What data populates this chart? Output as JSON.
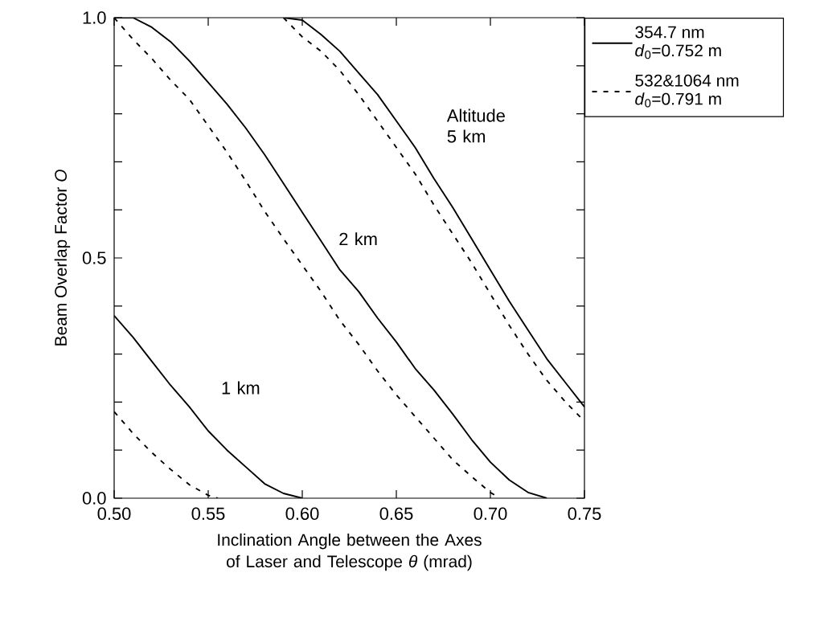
{
  "chart_data": {
    "type": "line",
    "xlabel": "Inclination Angle between the Axes of Laser and Telescope *θ* (mrad)",
    "ylabel": "Beam Overlap Factor *O*",
    "xlim": [
      0.5,
      0.75
    ],
    "ylim": [
      0.0,
      1.0
    ],
    "xticks": [
      {
        "value": 0.5,
        "label": "0.50"
      },
      {
        "value": 0.55,
        "label": "0.55"
      },
      {
        "value": 0.6,
        "label": "0.60"
      },
      {
        "value": 0.65,
        "label": "0.65"
      },
      {
        "value": 0.7,
        "label": "0.70"
      },
      {
        "value": 0.75,
        "label": "0.75"
      }
    ],
    "yticks": [
      {
        "value": 0,
        "label": "0.0"
      },
      {
        "value": 0.1,
        "label": null
      },
      {
        "value": 0.2,
        "label": null
      },
      {
        "value": 0.3,
        "label": null
      },
      {
        "value": 0.4,
        "label": null
      },
      {
        "value": 0.5,
        "label": "0.5"
      },
      {
        "value": 0.6,
        "label": null
      },
      {
        "value": 0.7,
        "label": null
      },
      {
        "value": 0.8,
        "label": null
      },
      {
        "value": 0.9,
        "label": null
      },
      {
        "value": 1.0,
        "label": "1.0"
      }
    ],
    "legend": "top right",
    "series": [
      {
        "name": "354.7 nm *d*$_{0}$=0.752 m",
        "color": "#000000",
        "line_style": "solid",
        "x": [
          0.5,
          0.51,
          0.52,
          0.53,
          0.54,
          0.55,
          0.56,
          0.57,
          0.58,
          0.59,
          0.6
        ],
        "values": [
          0.38,
          0.335,
          0.285,
          0.235,
          0.19,
          0.14,
          0.1,
          0.065,
          0.03,
          0.01,
          0.0
        ]
      },
      {
        "color": "#000000",
        "line_style": "solid",
        "x": [
          0.5,
          0.51,
          0.52,
          0.53,
          0.54,
          0.55,
          0.56,
          0.57,
          0.58,
          0.59,
          0.6,
          0.61,
          0.62,
          0.63,
          0.64,
          0.65,
          0.66,
          0.67,
          0.68,
          0.69,
          0.7,
          0.71,
          0.72,
          0.73
        ],
        "values": [
          1.0,
          1.0,
          0.98,
          0.95,
          0.91,
          0.865,
          0.82,
          0.77,
          0.715,
          0.655,
          0.595,
          0.535,
          0.475,
          0.43,
          0.375,
          0.325,
          0.27,
          0.225,
          0.175,
          0.122,
          0.075,
          0.038,
          0.012,
          0.0
        ]
      },
      {
        "color": "#000000",
        "line_style": "solid",
        "x": [
          0.59,
          0.6,
          0.61,
          0.62,
          0.63,
          0.64,
          0.65,
          0.66,
          0.67,
          0.68,
          0.69,
          0.7,
          0.71,
          0.72,
          0.73,
          0.74,
          0.75
        ],
        "values": [
          1.0,
          0.995,
          0.965,
          0.93,
          0.885,
          0.84,
          0.785,
          0.73,
          0.665,
          0.605,
          0.54,
          0.475,
          0.41,
          0.35,
          0.29,
          0.24,
          0.19
        ]
      },
      {
        "name": "532&1064 nm *d*$_{0}$=0.791 m",
        "color": "#000000",
        "line_style": "dashed",
        "x": [
          0.5,
          0.51,
          0.52,
          0.53,
          0.54,
          0.55,
          0.555
        ],
        "values": [
          0.18,
          0.135,
          0.095,
          0.06,
          0.028,
          0.006,
          0.0
        ]
      },
      {
        "color": "#000000",
        "line_style": "dashed",
        "x": [
          0.5,
          0.51,
          0.52,
          0.53,
          0.54,
          0.55,
          0.56,
          0.57,
          0.58,
          0.59,
          0.6,
          0.61,
          0.62,
          0.63,
          0.64,
          0.65,
          0.66,
          0.67,
          0.68,
          0.69,
          0.7,
          0.705
        ],
        "values": [
          1.0,
          0.955,
          0.915,
          0.87,
          0.83,
          0.775,
          0.72,
          0.66,
          0.597,
          0.54,
          0.485,
          0.43,
          0.37,
          0.32,
          0.265,
          0.215,
          0.17,
          0.125,
          0.08,
          0.045,
          0.012,
          0.0
        ]
      },
      {
        "color": "#000000",
        "line_style": "dashed",
        "x": [
          0.59,
          0.6,
          0.61,
          0.62,
          0.63,
          0.64,
          0.65,
          0.66,
          0.67,
          0.68,
          0.69,
          0.7,
          0.71,
          0.72,
          0.73,
          0.74,
          0.75
        ],
        "values": [
          1.0,
          0.96,
          0.93,
          0.89,
          0.84,
          0.785,
          0.73,
          0.675,
          0.61,
          0.55,
          0.49,
          0.425,
          0.36,
          0.3,
          0.245,
          0.2,
          0.16
        ]
      }
    ],
    "annotations": [
      "1 km",
      "2 km",
      "Altitude 5 km"
    ]
  }
}
